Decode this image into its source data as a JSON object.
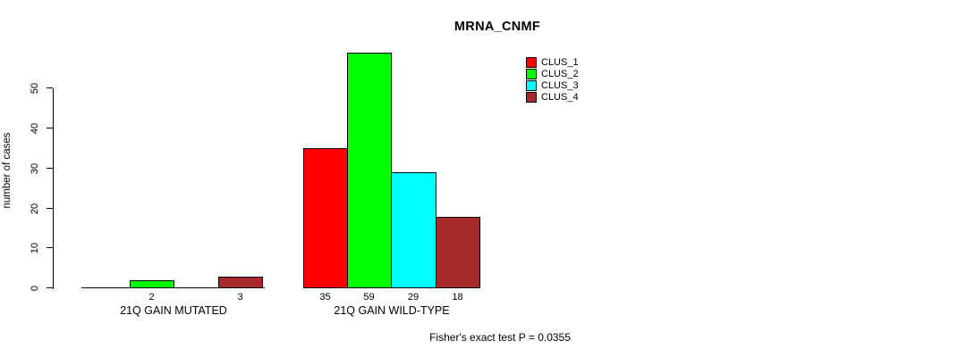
{
  "chart_data": {
    "type": "bar",
    "title": "MRNA_CNMF",
    "xlabel": "",
    "ylabel": "number of cases",
    "categories": [
      "21Q GAIN MUTATED",
      "21Q GAIN WILD-TYPE"
    ],
    "series": [
      {
        "name": "CLUS_1",
        "color": "#ff0000",
        "values": [
          0,
          35
        ]
      },
      {
        "name": "CLUS_2",
        "color": "#00ff00",
        "values": [
          2,
          59
        ]
      },
      {
        "name": "CLUS_3",
        "color": "#00ffff",
        "values": [
          0,
          29
        ]
      },
      {
        "name": "CLUS_4",
        "color": "#a52a2a",
        "values": [
          3,
          18
        ]
      }
    ],
    "bar_value_labels": [
      [
        "",
        "2",
        "",
        "3"
      ],
      [
        "35",
        "59",
        "29",
        "18"
      ]
    ],
    "yticks": [
      0,
      10,
      20,
      30,
      40,
      50
    ],
    "ylim": [
      0,
      59
    ],
    "grid": false,
    "legend_position": "top-right",
    "bar_border_color": "#000000",
    "background_color": "#ffffff",
    "annotations": [
      "Fisher's exact test P = 0.0355"
    ]
  }
}
